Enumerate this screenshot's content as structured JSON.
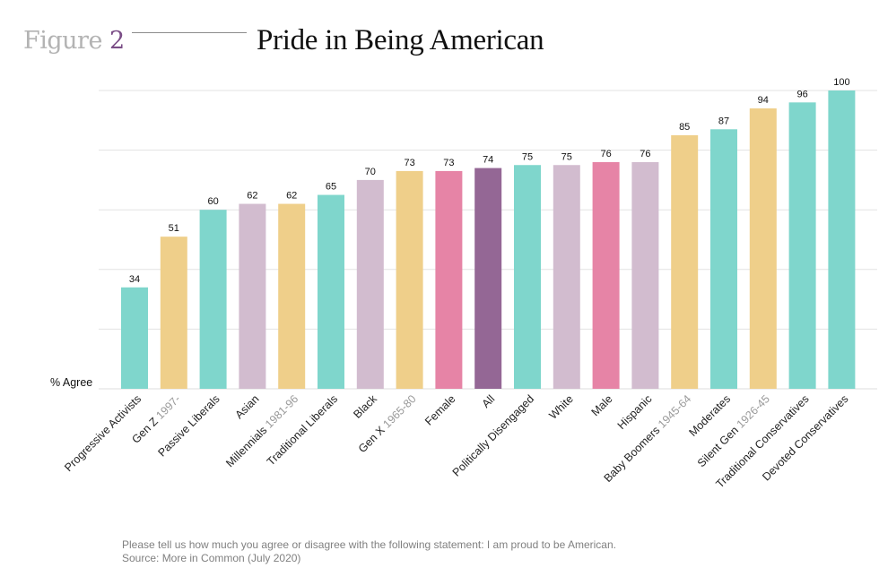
{
  "header": {
    "figure_word": "Figure",
    "figure_number": "2",
    "title": "Pride in Being American"
  },
  "footnote": {
    "question": "Please tell us how much you agree or disagree with the following statement: I am proud to be American.",
    "source": "Source: More in Common (July 2020)"
  },
  "colors": {
    "teal": "#7fd6cc",
    "yellow": "#efcf8a",
    "lilac": "#d2bccf",
    "pink": "#e684a6",
    "purple": "#946795",
    "year_gray": "#9a9a9a",
    "grid": "#e3e3e3"
  },
  "chart_data": {
    "type": "bar",
    "title": "Pride in Being American",
    "ylabel": "% Agree",
    "ylim": [
      0,
      100
    ],
    "grid": true,
    "categories": [
      {
        "label": "Progressive Activists",
        "years": "",
        "value": 34,
        "color": "teal"
      },
      {
        "label": "Gen Z",
        "years": "1997-",
        "value": 51,
        "color": "yellow"
      },
      {
        "label": "Passive Liberals",
        "years": "",
        "value": 60,
        "color": "teal"
      },
      {
        "label": "Asian",
        "years": "",
        "value": 62,
        "color": "lilac"
      },
      {
        "label": "Millennials",
        "years": "1981-96",
        "value": 62,
        "color": "yellow"
      },
      {
        "label": "Traditional Liberals",
        "years": "",
        "value": 65,
        "color": "teal"
      },
      {
        "label": "Black",
        "years": "",
        "value": 70,
        "color": "lilac"
      },
      {
        "label": "Gen X",
        "years": "1965-80",
        "value": 73,
        "color": "yellow"
      },
      {
        "label": "Female",
        "years": "",
        "value": 73,
        "color": "pink"
      },
      {
        "label": "All",
        "years": "",
        "value": 74,
        "color": "purple"
      },
      {
        "label": "Politically Disengaged",
        "years": "",
        "value": 75,
        "color": "teal"
      },
      {
        "label": "White",
        "years": "",
        "value": 75,
        "color": "lilac"
      },
      {
        "label": "Male",
        "years": "",
        "value": 76,
        "color": "pink"
      },
      {
        "label": "Hispanic",
        "years": "",
        "value": 76,
        "color": "lilac"
      },
      {
        "label": "Baby Boomers",
        "years": "1945-64",
        "value": 85,
        "color": "yellow"
      },
      {
        "label": "Moderates",
        "years": "",
        "value": 87,
        "color": "teal"
      },
      {
        "label": "Silent Gen",
        "years": "1926-45",
        "value": 94,
        "color": "yellow"
      },
      {
        "label": "Traditional Conservatives",
        "years": "",
        "value": 96,
        "color": "teal"
      },
      {
        "label": "Devoted Conservatives",
        "years": "",
        "value": 100,
        "color": "teal"
      }
    ]
  }
}
